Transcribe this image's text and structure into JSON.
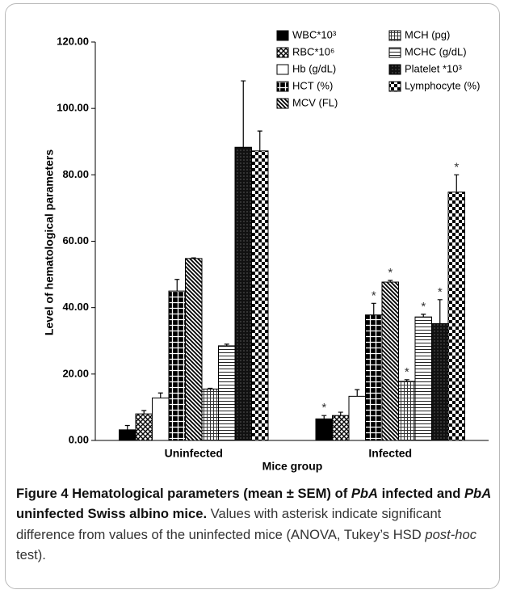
{
  "chart_data": {
    "type": "bar",
    "y_label": "Level of hematological parameters",
    "x_label": "Mice group",
    "categories": [
      "Uninfected",
      "Infected"
    ],
    "ylim": [
      0,
      120
    ],
    "yticks": [
      {
        "value": 0,
        "label": "0.00"
      },
      {
        "value": 20,
        "label": "20.00"
      },
      {
        "value": 40,
        "label": "40.00"
      },
      {
        "value": 60,
        "label": "60.00"
      },
      {
        "value": 80,
        "label": "80.00"
      },
      {
        "value": 100,
        "label": "100.00"
      },
      {
        "value": 120,
        "label": "120.00"
      }
    ],
    "grid": false,
    "series": [
      {
        "name": "WBC*10³",
        "color": "#000000",
        "pattern": "solid",
        "values": [
          3.2,
          6.5
        ],
        "errors": [
          1.3,
          1.0
        ]
      },
      {
        "name": "RBC*10⁶",
        "color": "#000000",
        "pattern": "crossdiag",
        "values": [
          8.0,
          7.5
        ],
        "errors": [
          1.0,
          1.0
        ]
      },
      {
        "name": "Hb (g/dL)",
        "color": "#000000",
        "pattern": "none",
        "values": [
          12.8,
          13.3
        ],
        "errors": [
          1.5,
          2.0
        ]
      },
      {
        "name": "HCT (%)",
        "color": "#000000",
        "pattern": "blockgrid",
        "values": [
          45.0,
          37.8
        ],
        "errors": [
          3.5,
          3.5
        ]
      },
      {
        "name": "MCV (FL)",
        "color": "#000000",
        "pattern": "diag",
        "values": [
          54.8,
          47.7
        ],
        "errors": [
          0.2,
          0.5
        ]
      },
      {
        "name": "MCH (pg)",
        "color": "#000000",
        "pattern": "finegrid",
        "values": [
          15.5,
          17.8
        ],
        "errors": [
          0.2,
          0.5
        ]
      },
      {
        "name": "MCHC (g/dL)",
        "color": "#000000",
        "pattern": "hlines",
        "values": [
          28.5,
          37.2
        ],
        "errors": [
          0.5,
          0.8
        ]
      },
      {
        "name": "Platelet *10³",
        "color": "#000000",
        "pattern": "densecross",
        "values": [
          88.3,
          35.2
        ],
        "errors": [
          20.0,
          7.2
        ]
      },
      {
        "name": "Lymphocyte (%)",
        "color": "#000000",
        "pattern": "checker",
        "values": [
          87.2,
          74.8
        ],
        "errors": [
          6.0,
          5.2
        ]
      }
    ],
    "annotations": [
      {
        "text": "*",
        "series": "WBC*10³",
        "category": "Infected"
      },
      {
        "text": "*",
        "series": "HCT (%)",
        "category": "Infected"
      },
      {
        "text": "*",
        "series": "MCV (FL)",
        "category": "Infected"
      },
      {
        "text": "*",
        "series": "MCH (pg)",
        "category": "Infected"
      },
      {
        "text": "*",
        "series": "MCHC (g/dL)",
        "category": "Infected"
      },
      {
        "text": "*",
        "series": "Platelet *10³",
        "category": "Infected"
      },
      {
        "text": "*",
        "series": "Lymphocyte (%)",
        "category": "Infected"
      }
    ],
    "legend": "top-right"
  },
  "caption": [
    {
      "text": "Figure 4",
      "style": "bold"
    },
    {
      "text": " Hematological parameters (mean ± SEM) of ",
      "style": "bold"
    },
    {
      "text": "PbA",
      "style": "bold-italic"
    },
    {
      "text": " infected and ",
      "style": "bold"
    },
    {
      "text": "PbA",
      "style": "bold-italic"
    },
    {
      "text": " uninfected Swiss albino mice.",
      "style": "bold"
    },
    {
      "text": " Values with asterisk indicate significant difference from values of the uninfected mice (ANOVA, Tukey’s HSD ",
      "style": "normal"
    },
    {
      "text": "post-hoc",
      "style": "italic"
    },
    {
      "text": " test).",
      "style": "normal"
    }
  ]
}
